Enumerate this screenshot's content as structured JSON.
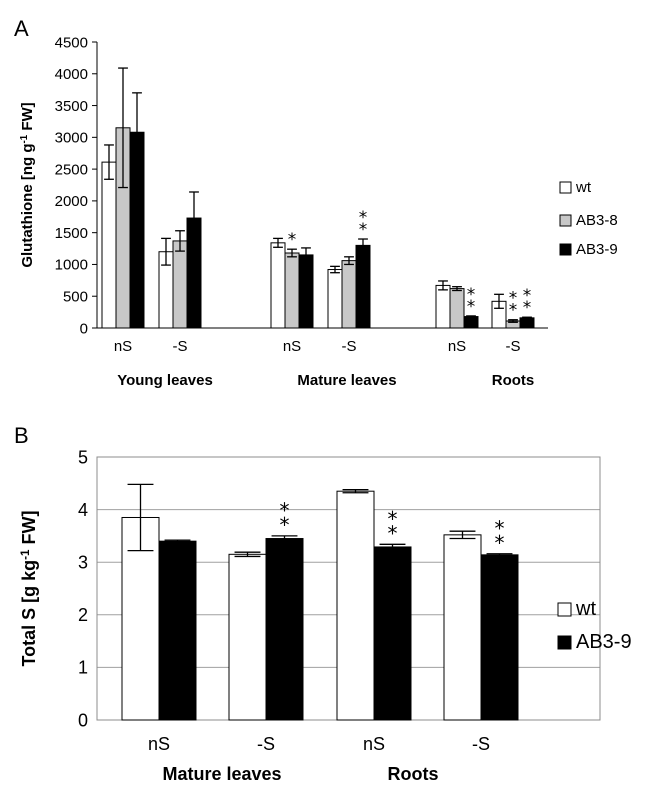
{
  "chart_data": [
    {
      "panel": "A",
      "type": "bar",
      "ylabel": "Glutathione [ng g",
      "ylabel_sup": "-1",
      "ylabel_tail": " FW]",
      "ylim": [
        0,
        4500
      ],
      "yticks": [
        "0",
        "500",
        "1000",
        "1500",
        "2000",
        "2500",
        "3000",
        "3500",
        "4000",
        "4500"
      ],
      "grid": false,
      "legend": "right",
      "categories": [
        "nS",
        "-S",
        "nS",
        "-S",
        "nS",
        "-S"
      ],
      "groups": [
        "Young leaves",
        "Mature  leaves",
        "Roots"
      ],
      "series": [
        {
          "name": "wt",
          "color": "#ffffff",
          "values": [
            2610,
            1200,
            1340,
            920,
            670,
            420
          ],
          "errors": [
            270,
            210,
            70,
            50,
            70,
            110
          ]
        },
        {
          "name": "AB3-8",
          "color": "#c8c8c8",
          "values": [
            3150,
            1370,
            1180,
            1060,
            620,
            110
          ],
          "errors": [
            940,
            160,
            60,
            60,
            30,
            20
          ]
        },
        {
          "name": "AB3-9",
          "color": "#000000",
          "values": [
            3080,
            1730,
            1150,
            1300,
            180,
            160
          ],
          "errors": [
            620,
            410,
            110,
            100,
            10,
            10
          ]
        }
      ],
      "annotations": [
        {
          "category_index": 2,
          "series": "AB3-8",
          "text": "*"
        },
        {
          "category_index": 3,
          "series": "AB3-9",
          "text": "*\n*"
        },
        {
          "category_index": 4,
          "series": "AB3-9",
          "text": "*\n*"
        },
        {
          "category_index": 5,
          "series": "AB3-8",
          "text": "*\n*"
        },
        {
          "category_index": 5,
          "series": "AB3-9",
          "text": "*\n*"
        }
      ]
    },
    {
      "panel": "B",
      "type": "bar",
      "ylabel": "Total S [g kg",
      "ylabel_sup": "-1",
      "ylabel_tail": " FW]",
      "ylim": [
        0,
        5
      ],
      "yticks": [
        "0",
        "1",
        "2",
        "3",
        "4",
        "5"
      ],
      "grid": true,
      "legend": "right",
      "categories": [
        "nS",
        "-S",
        "nS",
        "-S"
      ],
      "groups": [
        "Mature leaves",
        "Roots"
      ],
      "series": [
        {
          "name": "wt",
          "color": "#ffffff",
          "values": [
            3.85,
            3.15,
            4.35,
            3.52
          ],
          "errors": [
            0.63,
            0.04,
            0.03,
            0.07
          ]
        },
        {
          "name": "AB3-9",
          "color": "#000000",
          "values": [
            3.4,
            3.45,
            3.29,
            3.14
          ],
          "errors": [
            0.02,
            0.05,
            0.05,
            0.02
          ]
        }
      ],
      "annotations": [
        {
          "category_index": 1,
          "series": "AB3-9",
          "text": "*\n*"
        },
        {
          "category_index": 2,
          "series": "AB3-9",
          "text": "*\n*"
        },
        {
          "category_index": 3,
          "series": "AB3-9",
          "text": "*\n*"
        }
      ]
    }
  ]
}
